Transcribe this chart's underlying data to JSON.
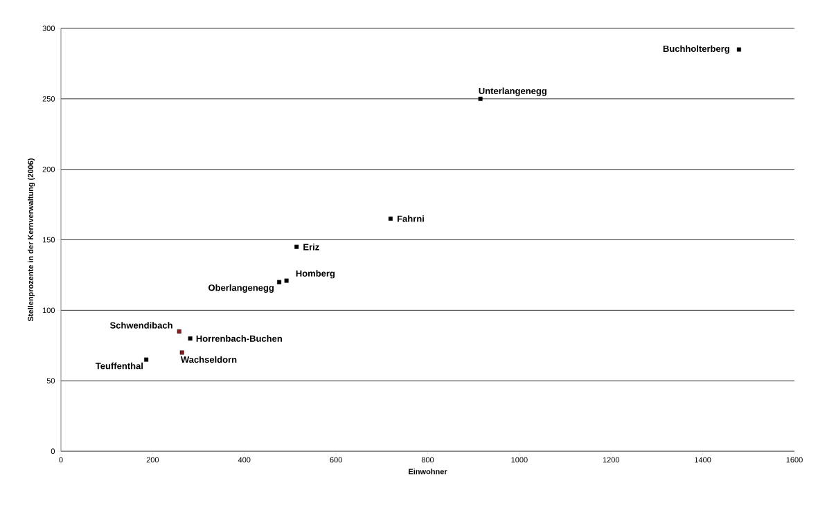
{
  "chart_data": {
    "type": "scatter",
    "xlabel": "Einwohner",
    "ylabel": "Stellenprozente in der Kernverwaltung (2006)",
    "x": [
      1479,
      915,
      719,
      514,
      492,
      476,
      258,
      282,
      264,
      186
    ],
    "values": [
      285,
      250,
      165,
      145,
      121,
      120,
      85,
      80,
      70,
      65
    ],
    "colors": [
      "#000000",
      "#000000",
      "#000000",
      "#000000",
      "#000000",
      "#000000",
      "#7f1f1f",
      "#000000",
      "#7f1f1f",
      "#000000"
    ],
    "annotations": [
      {
        "text": "Buchholterberg",
        "x": 1479,
        "y": 285
      },
      {
        "text": "Unterlangenegg",
        "x": 915,
        "y": 250
      },
      {
        "text": "Fahrni",
        "x": 719,
        "y": 165
      },
      {
        "text": "Eriz",
        "x": 514,
        "y": 145
      },
      {
        "text": "Homberg",
        "x": 492,
        "y": 121
      },
      {
        "text": "Oberlangenegg",
        "x": 476,
        "y": 120
      },
      {
        "text": "Schwendibach",
        "x": 258,
        "y": 85
      },
      {
        "text": "Horrenbach-Buchen",
        "x": 282,
        "y": 80
      },
      {
        "text": "Wachseldorn",
        "x": 264,
        "y": 70
      },
      {
        "text": "Teuffenthal",
        "x": 186,
        "y": 65
      }
    ],
    "marker": "square",
    "grid": "y",
    "xlim": [
      0,
      1600
    ],
    "xticks": [
      0,
      200,
      400,
      600,
      800,
      1000,
      1200,
      1400,
      1600
    ],
    "ylim": [
      0,
      300
    ],
    "yticks": [
      0,
      50,
      100,
      150,
      200,
      250,
      300
    ]
  }
}
